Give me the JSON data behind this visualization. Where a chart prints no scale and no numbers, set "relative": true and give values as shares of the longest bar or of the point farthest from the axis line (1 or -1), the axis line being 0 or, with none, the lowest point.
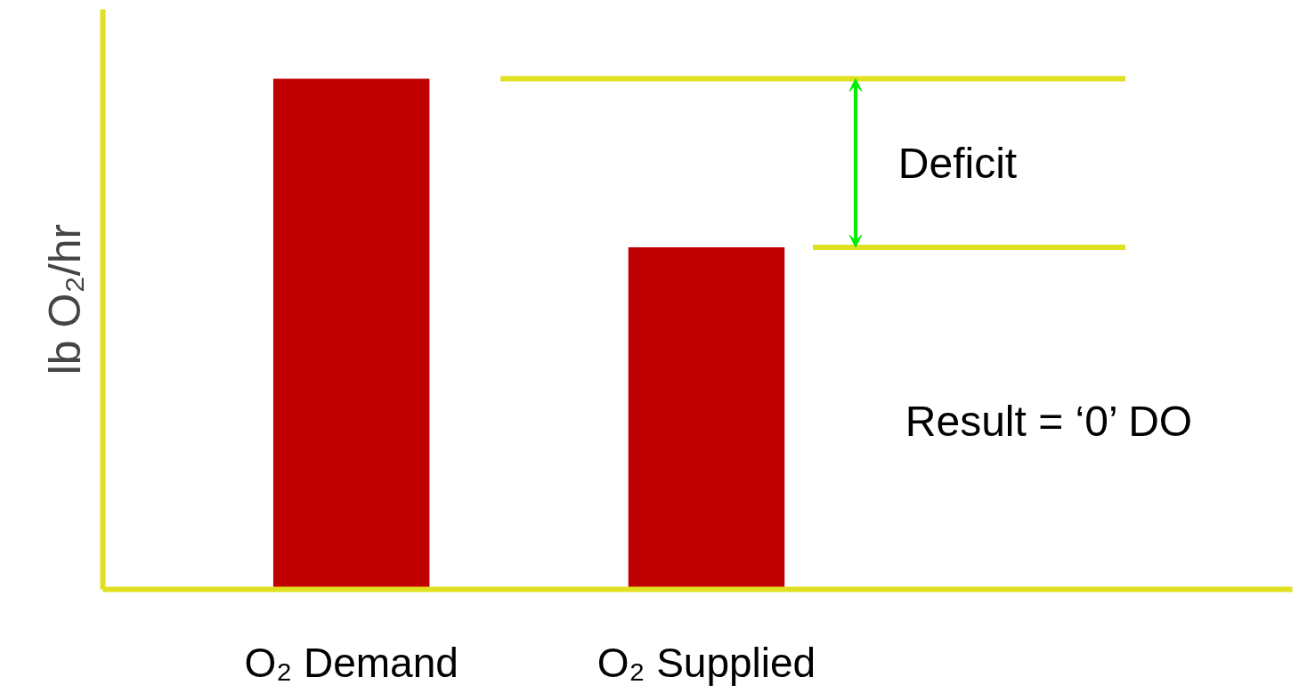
{
  "chart_data": {
    "type": "bar",
    "relative": true,
    "ylabel": "lb O₂/hr",
    "categories": [
      "O₂ Demand",
      "O₂ Supplied"
    ],
    "values": [
      1,
      0.67
    ],
    "color": "#c00000",
    "ref_lines": [
      {
        "axis": "y",
        "value": 1,
        "color": "#e0e020"
      },
      {
        "axis": "y",
        "value": 0.67,
        "color": "#e0e020"
      }
    ],
    "annotations": [
      "Deficit",
      "Result = ‘0’ DO"
    ],
    "grid": false
  }
}
